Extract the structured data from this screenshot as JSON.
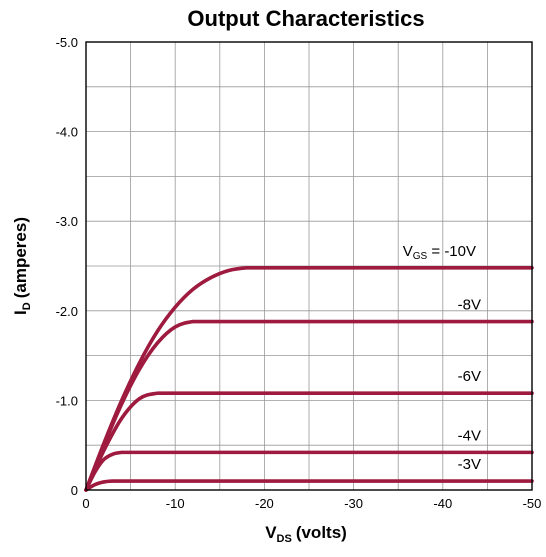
{
  "chart_data": {
    "type": "line",
    "title": "Output Characteristics",
    "xlabel": {
      "main": "V",
      "sub": "DS",
      "rest": "(volts)"
    },
    "ylabel": {
      "main": "I",
      "sub": "D",
      "rest": "(amperes)"
    },
    "xlim": [
      0,
      -50
    ],
    "ylim": [
      0,
      -5.0
    ],
    "x_ticks": [
      "0",
      "-10",
      "-20",
      "-30",
      "-40",
      "-50"
    ],
    "x_tick_values": [
      0,
      -10,
      -20,
      -30,
      -40,
      -50
    ],
    "y_ticks": [
      "0",
      "-1.0",
      "-2.0",
      "-3.0",
      "-4.0",
      "-5.0"
    ],
    "y_tick_values": [
      0,
      -1,
      -2,
      -3,
      -4,
      -5
    ],
    "grid": true,
    "line_color": "#9e1a3f",
    "series": [
      {
        "label_main": "V",
        "label_sub": "GS",
        "label_rest": " = -10V",
        "saturation_current": -2.48,
        "knee_vds": -18,
        "x": [
          0,
          -2,
          -4,
          -6,
          -8,
          -10,
          -12,
          -14,
          -16,
          -18,
          -20,
          -30,
          -40,
          -50
        ],
        "y": [
          0,
          -0.52,
          -1.0,
          -1.42,
          -1.77,
          -2.04,
          -2.24,
          -2.37,
          -2.45,
          -2.48,
          -2.48,
          -2.48,
          -2.48,
          -2.48
        ]
      },
      {
        "label_main": "-8V",
        "label_sub": "",
        "label_rest": "",
        "saturation_current": -1.88,
        "knee_vds": -12,
        "x": [
          0,
          -2,
          -4,
          -6,
          -8,
          -10,
          -12,
          -14,
          -20,
          -30,
          -40,
          -50
        ],
        "y": [
          0,
          -0.5,
          -0.96,
          -1.35,
          -1.64,
          -1.82,
          -1.88,
          -1.88,
          -1.88,
          -1.88,
          -1.88,
          -1.88
        ]
      },
      {
        "label_main": "-6V",
        "label_sub": "",
        "label_rest": "",
        "saturation_current": -1.08,
        "knee_vds": -8,
        "x": [
          0,
          -2,
          -4,
          -6,
          -8,
          -10,
          -20,
          -30,
          -40,
          -50
        ],
        "y": [
          0,
          -0.44,
          -0.8,
          -1.02,
          -1.08,
          -1.08,
          -1.08,
          -1.08,
          -1.08,
          -1.08
        ]
      },
      {
        "label_main": "-4V",
        "label_sub": "",
        "label_rest": "",
        "saturation_current": -0.42,
        "knee_vds": -4,
        "x": [
          0,
          -1,
          -2,
          -3,
          -4,
          -5,
          -10,
          -20,
          -30,
          -40,
          -50
        ],
        "y": [
          0,
          -0.2,
          -0.34,
          -0.4,
          -0.42,
          -0.42,
          -0.42,
          -0.42,
          -0.42,
          -0.42,
          -0.42
        ]
      },
      {
        "label_main": "-3V",
        "label_sub": "",
        "label_rest": "",
        "saturation_current": -0.1,
        "knee_vds": -2.5,
        "x": [
          0,
          -1,
          -2,
          -3,
          -5,
          -10,
          -20,
          -30,
          -40,
          -50
        ],
        "y": [
          0,
          -0.06,
          -0.09,
          -0.1,
          -0.1,
          -0.1,
          -0.1,
          -0.1,
          -0.1,
          -0.1
        ]
      }
    ]
  }
}
